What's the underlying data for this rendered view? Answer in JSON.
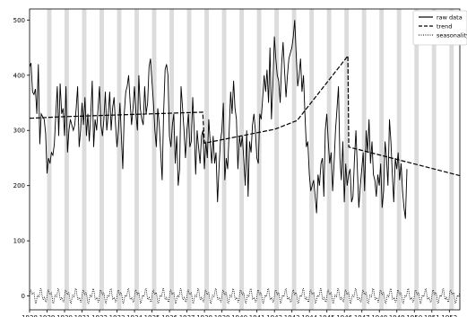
{
  "chart_data": {
    "type": "line",
    "title": "",
    "xlabel": "",
    "ylabel": "",
    "x_range": [
      1928.0,
      1952.6
    ],
    "ylim": [
      -25,
      520
    ],
    "y_ticks": [
      0,
      100,
      200,
      300,
      400,
      500
    ],
    "x_ticks": [
      "1928",
      "1929",
      "1930",
      "1931",
      "1932",
      "1933",
      "1934",
      "1935",
      "1936",
      "1937",
      "1938",
      "1939",
      "1940",
      "1941",
      "1942",
      "1943",
      "1944",
      "1945",
      "1946",
      "1947",
      "1948",
      "1949",
      "1950",
      "1951",
      "1952"
    ],
    "grid": false,
    "legend_position": "top-right",
    "colors": {
      "line": "#000000",
      "band": "#dcdcdc"
    },
    "shaded_bands_start_years": [
      1929,
      1930,
      1931,
      1932,
      1933,
      1934,
      1935,
      1936,
      1937,
      1938,
      1939,
      1940,
      1941,
      1942,
      1943,
      1944,
      1945,
      1946,
      1947,
      1948,
      1949,
      1950,
      1951,
      1952
    ],
    "series": [
      {
        "name": "raw data",
        "style": "solid",
        "x_start": 1928.0,
        "x_step": 0.0833,
        "values": [
          415,
          422,
          370,
          365,
          375,
          330,
          420,
          275,
          330,
          325,
          320,
          295,
          222,
          250,
          240,
          260,
          255,
          275,
          330,
          380,
          290,
          385,
          330,
          340,
          290,
          380,
          260,
          300,
          320,
          310,
          300,
          310,
          340,
          380,
          270,
          300,
          350,
          310,
          360,
          290,
          330,
          280,
          330,
          390,
          270,
          320,
          300,
          340,
          380,
          310,
          290,
          320,
          370,
          300,
          330,
          370,
          300,
          340,
          360,
          310,
          270,
          300,
          350,
          290,
          230,
          330,
          370,
          380,
          400,
          350,
          310,
          340,
          380,
          330,
          300,
          400,
          340,
          320,
          310,
          380,
          330,
          350,
          415,
          430,
          390,
          350,
          300,
          270,
          340,
          310,
          260,
          210,
          330,
          410,
          420,
          400,
          290,
          270,
          310,
          330,
          240,
          290,
          200,
          230,
          380,
          340,
          300,
          250,
          300,
          330,
          270,
          280,
          360,
          300,
          220,
          300,
          270,
          240,
          290,
          300,
          230,
          280,
          250,
          320,
          280,
          240,
          290,
          240,
          260,
          170,
          230,
          280,
          300,
          350,
          210,
          250,
          230,
          300,
          370,
          330,
          390,
          340,
          320,
          230,
          290,
          270,
          290,
          250,
          200,
          300,
          180,
          280,
          260,
          310,
          330,
          300,
          250,
          240,
          330,
          320,
          360,
          400,
          370,
          410,
          350,
          450,
          320,
          380,
          470,
          430,
          400,
          390,
          350,
          420,
          460,
          410,
          360,
          400,
          430,
          440,
          450,
          470,
          500,
          440,
          380,
          400,
          430,
          370,
          400,
          330,
          270,
          280,
          220,
          190,
          200,
          210,
          180,
          150,
          220,
          200,
          240,
          250,
          180,
          300,
          330,
          280,
          240,
          260,
          190,
          240,
          300,
          340,
          380,
          250,
          210,
          280,
          170,
          240,
          200,
          220,
          230,
          170,
          180,
          250,
          300,
          230,
          160,
          200,
          230,
          260,
          190,
          300,
          260,
          320,
          240,
          280,
          220,
          210,
          180,
          220,
          200,
          240,
          160,
          190,
          280,
          250,
          200,
          320,
          280,
          220,
          170,
          250,
          230,
          260,
          210,
          240,
          190,
          160,
          140,
          230
        ]
      },
      {
        "name": "trend",
        "style": "dashed",
        "points": [
          [
            1928.0,
            322
          ],
          [
            1930.0,
            325
          ],
          [
            1937.9,
            333
          ],
          [
            1938.0,
            277
          ],
          [
            1942.0,
            302
          ],
          [
            1943.3,
            318
          ],
          [
            1946.2,
            435
          ],
          [
            1946.25,
            270
          ],
          [
            1952.6,
            218
          ]
        ]
      },
      {
        "name": "seasonality",
        "style": "dotted",
        "amplitude": 15,
        "baseline": 0
      }
    ]
  }
}
